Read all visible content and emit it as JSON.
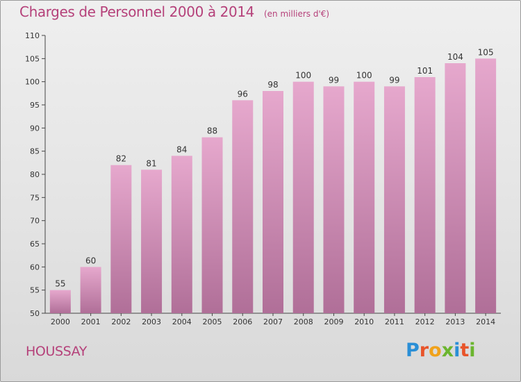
{
  "header": {
    "title": "Charges de Personnel 2000 à 2014",
    "subtitle": "(en milliers d'€)"
  },
  "footer": {
    "commune": "HOUSSAY",
    "brand": [
      "P",
      "r",
      "o",
      "x",
      "i",
      "t",
      "i"
    ]
  },
  "colors": {
    "title": "#b5417a",
    "bar_top": "#e6a8cd",
    "bar_bottom": "#b06f98",
    "brand_blue": "#2a8fd6",
    "brand_orange": "#e8542a",
    "brand_yellow": "#f0a21b",
    "brand_green": "#6bb52e"
  },
  "chart_data": {
    "type": "bar",
    "title": "Charges de Personnel 2000 à 2014",
    "subtitle": "(en milliers d'€)",
    "categories": [
      "2000",
      "2001",
      "2002",
      "2003",
      "2004",
      "2005",
      "2006",
      "2007",
      "2008",
      "2009",
      "2010",
      "2011",
      "2012",
      "2013",
      "2014"
    ],
    "values": [
      55,
      60,
      82,
      81,
      84,
      88,
      96,
      98,
      100,
      99,
      100,
      99,
      101,
      104,
      105
    ],
    "ylim": [
      50,
      110
    ],
    "yticks": [
      50,
      55,
      60,
      65,
      70,
      75,
      80,
      85,
      90,
      95,
      100,
      105,
      110
    ],
    "grid": false,
    "legend": "none"
  }
}
